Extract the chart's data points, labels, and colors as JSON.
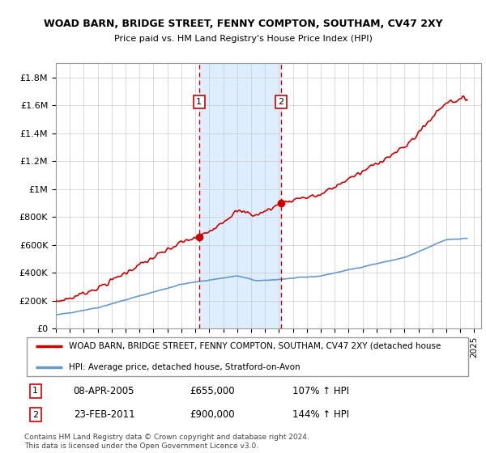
{
  "title1": "WOAD BARN, BRIDGE STREET, FENNY COMPTON, SOUTHAM, CV47 2XY",
  "title2": "Price paid vs. HM Land Registry's House Price Index (HPI)",
  "ylabel_ticks": [
    "£0",
    "£200K",
    "£400K",
    "£600K",
    "£800K",
    "£1M",
    "£1.2M",
    "£1.4M",
    "£1.6M",
    "£1.8M"
  ],
  "ylabel_values": [
    0,
    200000,
    400000,
    600000,
    800000,
    1000000,
    1200000,
    1400000,
    1600000,
    1800000
  ],
  "ylim": [
    0,
    1900000
  ],
  "xlim_start": 1995.0,
  "xlim_end": 2025.5,
  "xticks": [
    1995,
    1996,
    1997,
    1998,
    1999,
    2000,
    2001,
    2002,
    2003,
    2004,
    2005,
    2006,
    2007,
    2008,
    2009,
    2010,
    2011,
    2012,
    2013,
    2014,
    2015,
    2016,
    2017,
    2018,
    2019,
    2020,
    2021,
    2022,
    2023,
    2024,
    2025
  ],
  "sale1_x": 2005.27,
  "sale1_y": 655000,
  "sale2_x": 2011.14,
  "sale2_y": 900000,
  "sale1_label": "1",
  "sale2_label": "2",
  "sale1_date": "08-APR-2005",
  "sale1_price": "£655,000",
  "sale1_hpi": "107% ↑ HPI",
  "sale2_date": "23-FEB-2011",
  "sale2_price": "£900,000",
  "sale2_hpi": "144% ↑ HPI",
  "red_line_color": "#cc0000",
  "blue_line_color": "#6699cc",
  "shaded_region_color": "#ddeeff",
  "grid_color": "#cccccc",
  "legend_label_red": "WOAD BARN, BRIDGE STREET, FENNY COMPTON, SOUTHAM, CV47 2XY (detached house",
  "legend_label_blue": "HPI: Average price, detached house, Stratford-on-Avon",
  "footnote": "Contains HM Land Registry data © Crown copyright and database right 2024.\nThis data is licensed under the Open Government Licence v3.0."
}
